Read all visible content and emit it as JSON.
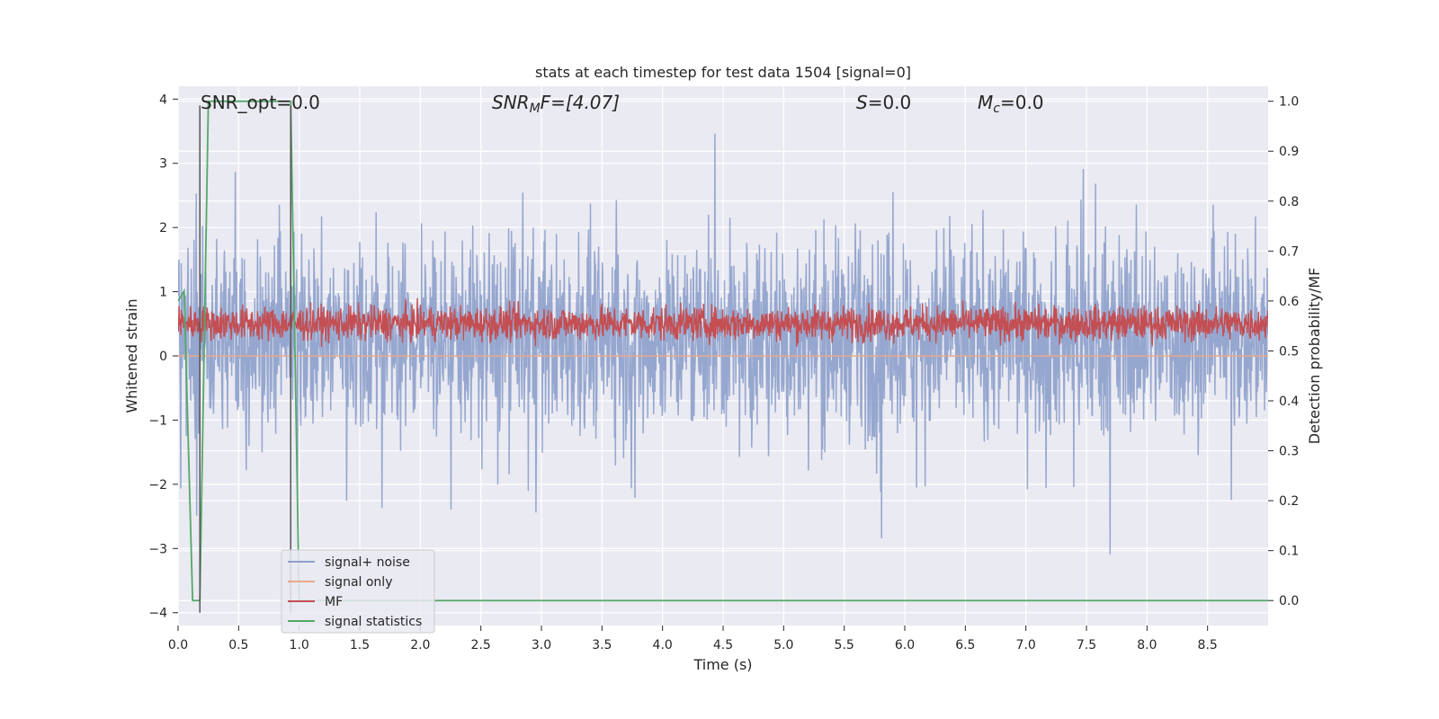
{
  "chart_data": {
    "type": "line",
    "title": "stats at each timestep for test data 1504 [signal=0]",
    "xlabel": "Time (s)",
    "ylabel": "Whitened strain",
    "y2label": "Detection probability/MF",
    "xlim": [
      0.0,
      9.0
    ],
    "ylim": [
      -4.2,
      4.2
    ],
    "y2lim": [
      -0.05,
      1.03
    ],
    "x_ticks": [
      0.0,
      0.5,
      1.0,
      1.5,
      2.0,
      2.5,
      3.0,
      3.5,
      4.0,
      4.5,
      5.0,
      5.5,
      6.0,
      6.5,
      7.0,
      7.5,
      8.0,
      8.5
    ],
    "x_tick_labels": [
      "0.0",
      "0.5",
      "1.0",
      "1.5",
      "2.0",
      "2.5",
      "3.0",
      "3.5",
      "4.0",
      "4.5",
      "5.0",
      "5.5",
      "6.0",
      "6.5",
      "7.0",
      "7.5",
      "8.0",
      "8.5"
    ],
    "y_ticks": [
      -4,
      -3,
      -2,
      -1,
      0,
      1,
      2,
      3,
      4
    ],
    "y_tick_labels": [
      "−4",
      "−3",
      "−2",
      "−1",
      "0",
      "1",
      "2",
      "3",
      "4"
    ],
    "y2_ticks": [
      0.0,
      0.1,
      0.2,
      0.3,
      0.4,
      0.5,
      0.6,
      0.7,
      0.8,
      0.9,
      1.0
    ],
    "y2_tick_labels": [
      "0.0",
      "0.1",
      "0.2",
      "0.3",
      "0.4",
      "0.5",
      "0.6",
      "0.7",
      "0.8",
      "0.9",
      "1.0"
    ],
    "grid": true,
    "legend_placement": "lower-left",
    "annotations": {
      "snr_opt": "SNR_opt=0.0",
      "snr_mf_main": "SNR",
      "snr_mf_sub": "M",
      "snr_mf_rest": "F=[4.07]",
      "s_main": "S",
      "s_rest": "=0.0",
      "mc_main": "M",
      "mc_sub": "c",
      "mc_rest": "=0.0"
    },
    "series": [
      {
        "name": "signal+ noise",
        "axis": "left",
        "color": "#8da0cb",
        "style": "dense noise, envelope approx. -2.7 to 3.9, mostly within -1.6 to 2.3"
      },
      {
        "name": "signal only",
        "axis": "left",
        "color": "#e8a98a",
        "x": [
          0.0,
          9.0
        ],
        "y": [
          0.0,
          0.0
        ]
      },
      {
        "name": "MF",
        "axis": "right",
        "color": "#c44e52",
        "style": "dense noise, approx. 0.51 to 0.62, mean 0.55"
      },
      {
        "name": "signal statistics",
        "axis": "right",
        "color": "#55a868",
        "x": [
          0.0,
          0.05,
          0.12,
          0.18,
          0.25,
          0.93,
          1.0,
          1.05,
          9.0
        ],
        "y": [
          0.6,
          0.62,
          0.0,
          0.0,
          1.0,
          1.0,
          0.0,
          0.0,
          0.0
        ]
      }
    ],
    "vertical_lines": {
      "color": "#555555",
      "x": [
        0.18,
        0.93
      ],
      "ymin": -4.0,
      "ymax": 3.9
    }
  }
}
